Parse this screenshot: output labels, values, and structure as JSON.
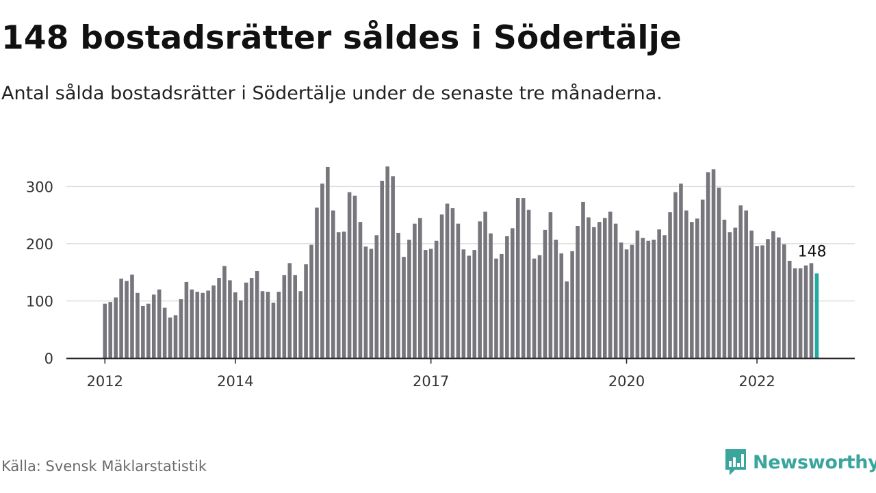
{
  "header": {
    "title": "148 bostadsrätter såldes i Södertälje",
    "subtitle": "Antal sålda bostadsrätter i Södertälje under de senaste tre månaderna."
  },
  "footer": {
    "source": "Källa: Svensk Mäklarstatistik",
    "brand": "Newsworthy",
    "brand_icon": "bar-chart-chat-icon"
  },
  "colors": {
    "bar": "#77767c",
    "highlight": "#22a9a0",
    "grid": "#dddddd",
    "axis": "#222222",
    "brand": "#3aa59d"
  },
  "chart_data": {
    "type": "bar",
    "title": "148 bostadsrätter såldes i Södertälje",
    "subtitle": "Antal sålda bostadsrätter i Södertälje under de senaste tre månaderna.",
    "xlabel": "",
    "ylabel": "",
    "ylim": [
      0,
      350
    ],
    "yticks": [
      0,
      100,
      200,
      300
    ],
    "grid": true,
    "x_tick_labels": [
      {
        "label": "2012",
        "index": 0
      },
      {
        "label": "2014",
        "index": 24
      },
      {
        "label": "2017",
        "index": 60
      },
      {
        "label": "2020",
        "index": 96
      },
      {
        "label": "2022",
        "index": 120
      }
    ],
    "highlight_label": "148",
    "highlight_index": 131,
    "series": [
      {
        "values": [
          95,
          98,
          106,
          139,
          135,
          146,
          114,
          91,
          95,
          111,
          120,
          88,
          71,
          75,
          103,
          133,
          120,
          116,
          114,
          118,
          127,
          140,
          161,
          136,
          115,
          101,
          132,
          140,
          152,
          117,
          116,
          97,
          116,
          145,
          166,
          145,
          117,
          164,
          198,
          263,
          305,
          334,
          258,
          220,
          221,
          290,
          284,
          238,
          195,
          191,
          215,
          310,
          335,
          318,
          219,
          177,
          207,
          235,
          245,
          189,
          191,
          205,
          251,
          270,
          262,
          235,
          190,
          179,
          189,
          239,
          256,
          218,
          174,
          182,
          213,
          227,
          280,
          280,
          259,
          174,
          180,
          224,
          255,
          207,
          183,
          134,
          187,
          231,
          273,
          246,
          229,
          238,
          245,
          256,
          235,
          202,
          190,
          198,
          223,
          210,
          205,
          207,
          225,
          215,
          255,
          290,
          305,
          258,
          238,
          244,
          277,
          325,
          330,
          298,
          242,
          220,
          228,
          267,
          258,
          223,
          196,
          197,
          208,
          222,
          211,
          199,
          170,
          157,
          157,
          162,
          166,
          148
        ]
      }
    ]
  }
}
